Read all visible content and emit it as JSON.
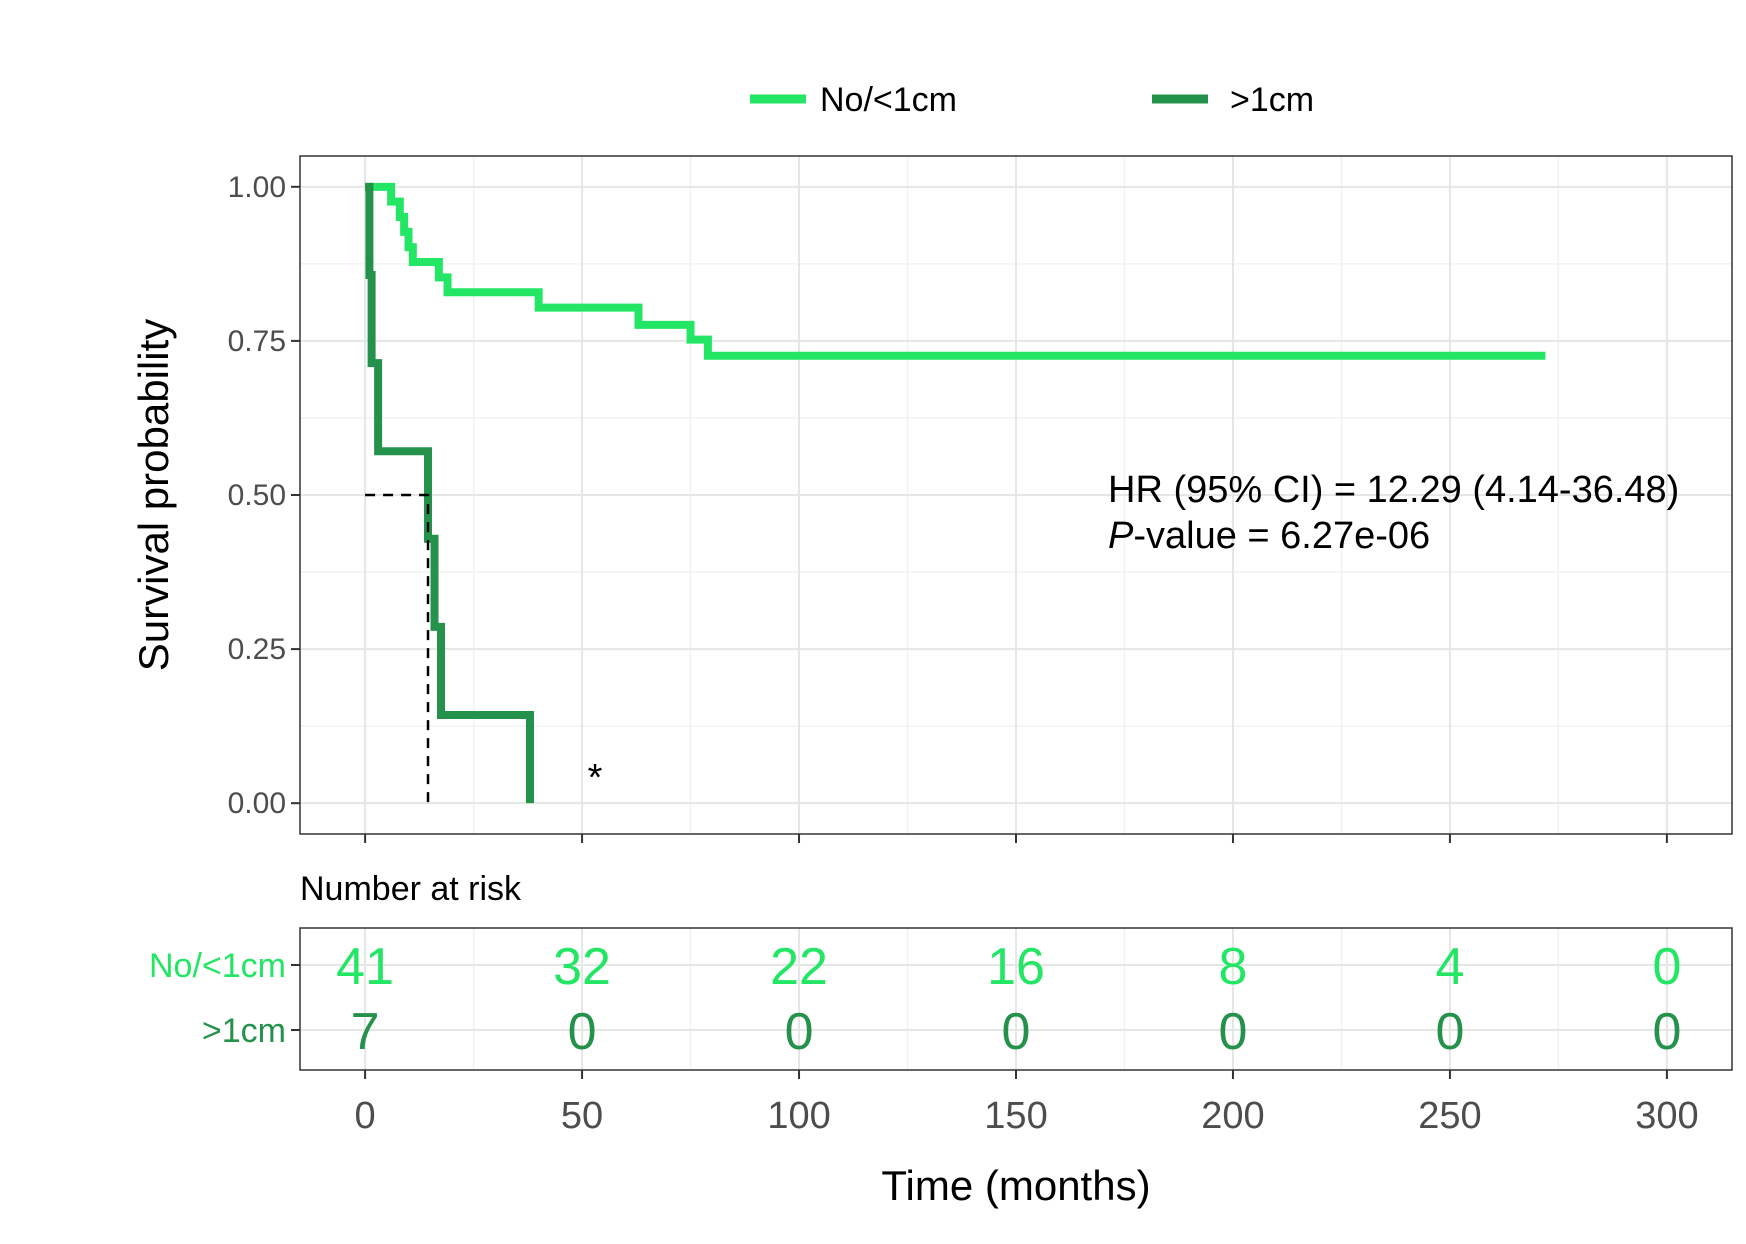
{
  "chart_data": {
    "type": "line",
    "subtype": "kaplan-meier",
    "xlabel": "Time (months)",
    "ylabel": "Survival probability",
    "xlim": [
      -15,
      315
    ],
    "ylim": [
      -0.05,
      1.05
    ],
    "x_ticks": [
      0,
      50,
      100,
      150,
      200,
      250,
      300
    ],
    "y_ticks": [
      0.0,
      0.25,
      0.5,
      0.75,
      1.0
    ],
    "y_tick_labels": [
      "0.00",
      "0.25",
      "0.50",
      "0.75",
      "1.00"
    ],
    "grid": true,
    "legend_position": "top",
    "series": [
      {
        "name": "No/<1cm",
        "color": "#22e664",
        "steps": [
          [
            0,
            1.0
          ],
          [
            6,
            0.976
          ],
          [
            8,
            0.951
          ],
          [
            9,
            0.927
          ],
          [
            10,
            0.902
          ],
          [
            11,
            0.878
          ],
          [
            17,
            0.853
          ],
          [
            19,
            0.829
          ],
          [
            40,
            0.804
          ],
          [
            63,
            0.776
          ],
          [
            75,
            0.752
          ],
          [
            79,
            0.726
          ],
          [
            272,
            0.726
          ]
        ]
      },
      {
        "name": ">1cm",
        "color": "#24924b",
        "steps": [
          [
            0,
            1.0
          ],
          [
            1,
            0.857
          ],
          [
            1.5,
            0.714
          ],
          [
            3,
            0.571
          ],
          [
            14.5,
            0.429
          ],
          [
            16,
            0.286
          ],
          [
            17.5,
            0.143
          ],
          [
            38,
            0.0
          ]
        ]
      }
    ],
    "median_line": {
      "x": 14.5,
      "y": 0.5
    },
    "annotations": {
      "hr_text": "HR (95% CI) = 12.29 (4.14-36.48)",
      "p_italic": "P",
      "p_rest": "-value = 6.27e-06",
      "asterisk": "*",
      "asterisk_x": 53,
      "asterisk_y": 0.07
    },
    "risk_table": {
      "title": "Number at risk",
      "times": [
        0,
        50,
        100,
        150,
        200,
        250,
        300
      ],
      "rows": [
        {
          "name": "No/<1cm",
          "color": "#22e664",
          "counts": [
            "41",
            "32",
            "22",
            "16",
            "8",
            "4",
            "0"
          ]
        },
        {
          "name": ">1cm",
          "color": "#24924b",
          "counts": [
            "7",
            "0",
            "0",
            "0",
            "0",
            "0",
            "0"
          ]
        }
      ]
    }
  }
}
